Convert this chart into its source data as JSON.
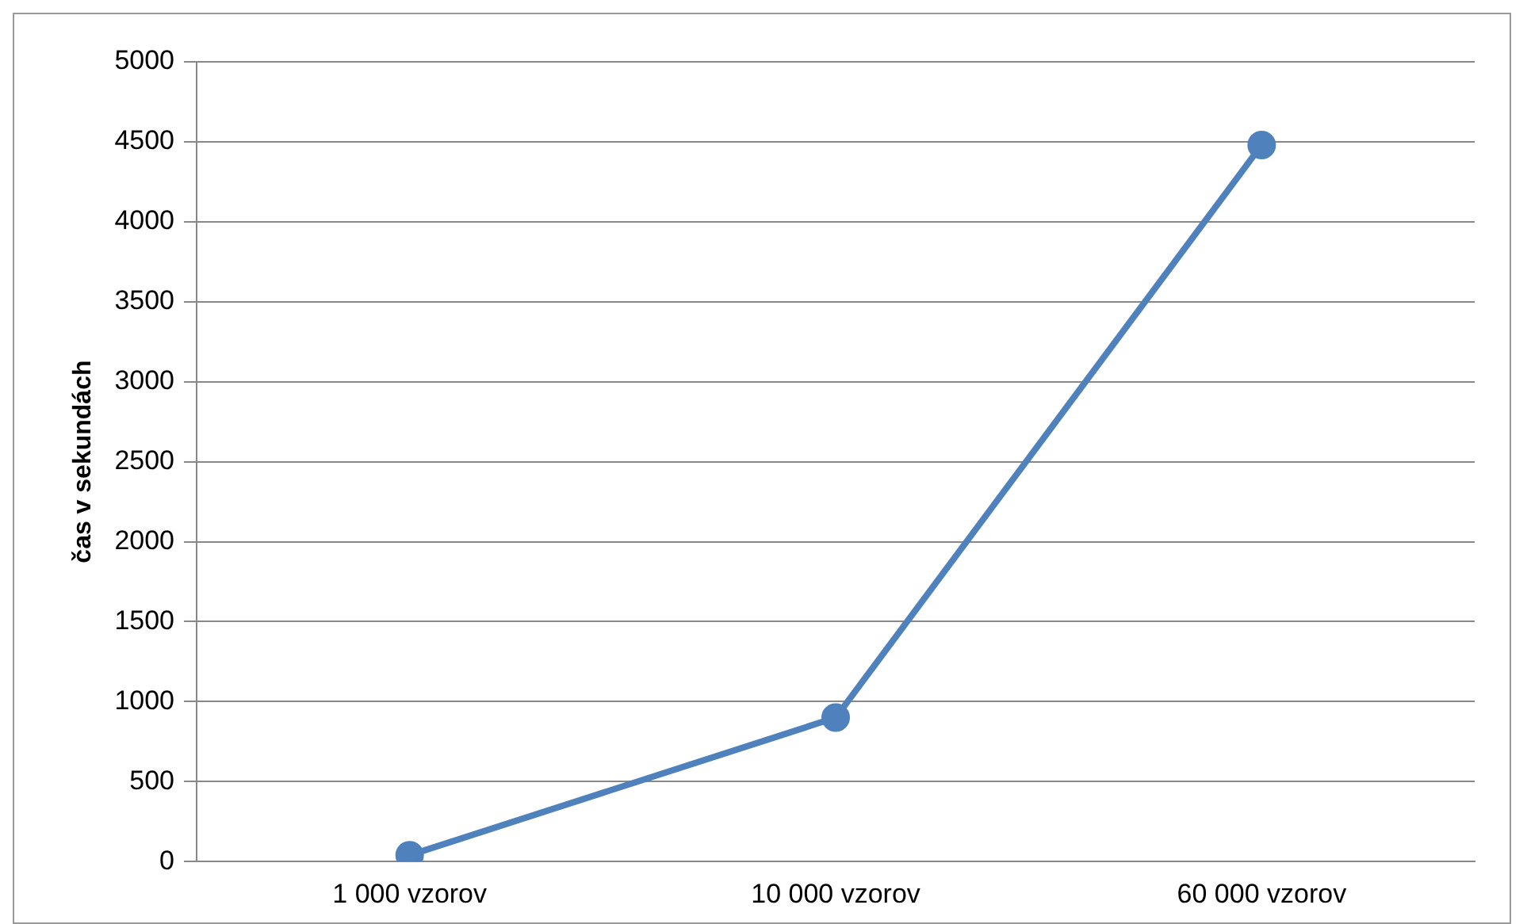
{
  "chart_data": {
    "type": "line",
    "ylabel": "čas v sekundách",
    "categories": [
      "1 000 vzorov",
      "10 000 vzorov",
      "60 000 vzorov"
    ],
    "series": [
      {
        "color": "#4f81bd",
        "values": [
          40,
          900,
          4480
        ]
      }
    ],
    "ylim": [
      0,
      5000
    ],
    "yticks": [
      0,
      500,
      1000,
      1500,
      2000,
      2500,
      3000,
      3500,
      4000,
      4500,
      5000
    ],
    "grid": "y",
    "legend": false,
    "marker": "circle",
    "line_style": "solid"
  }
}
